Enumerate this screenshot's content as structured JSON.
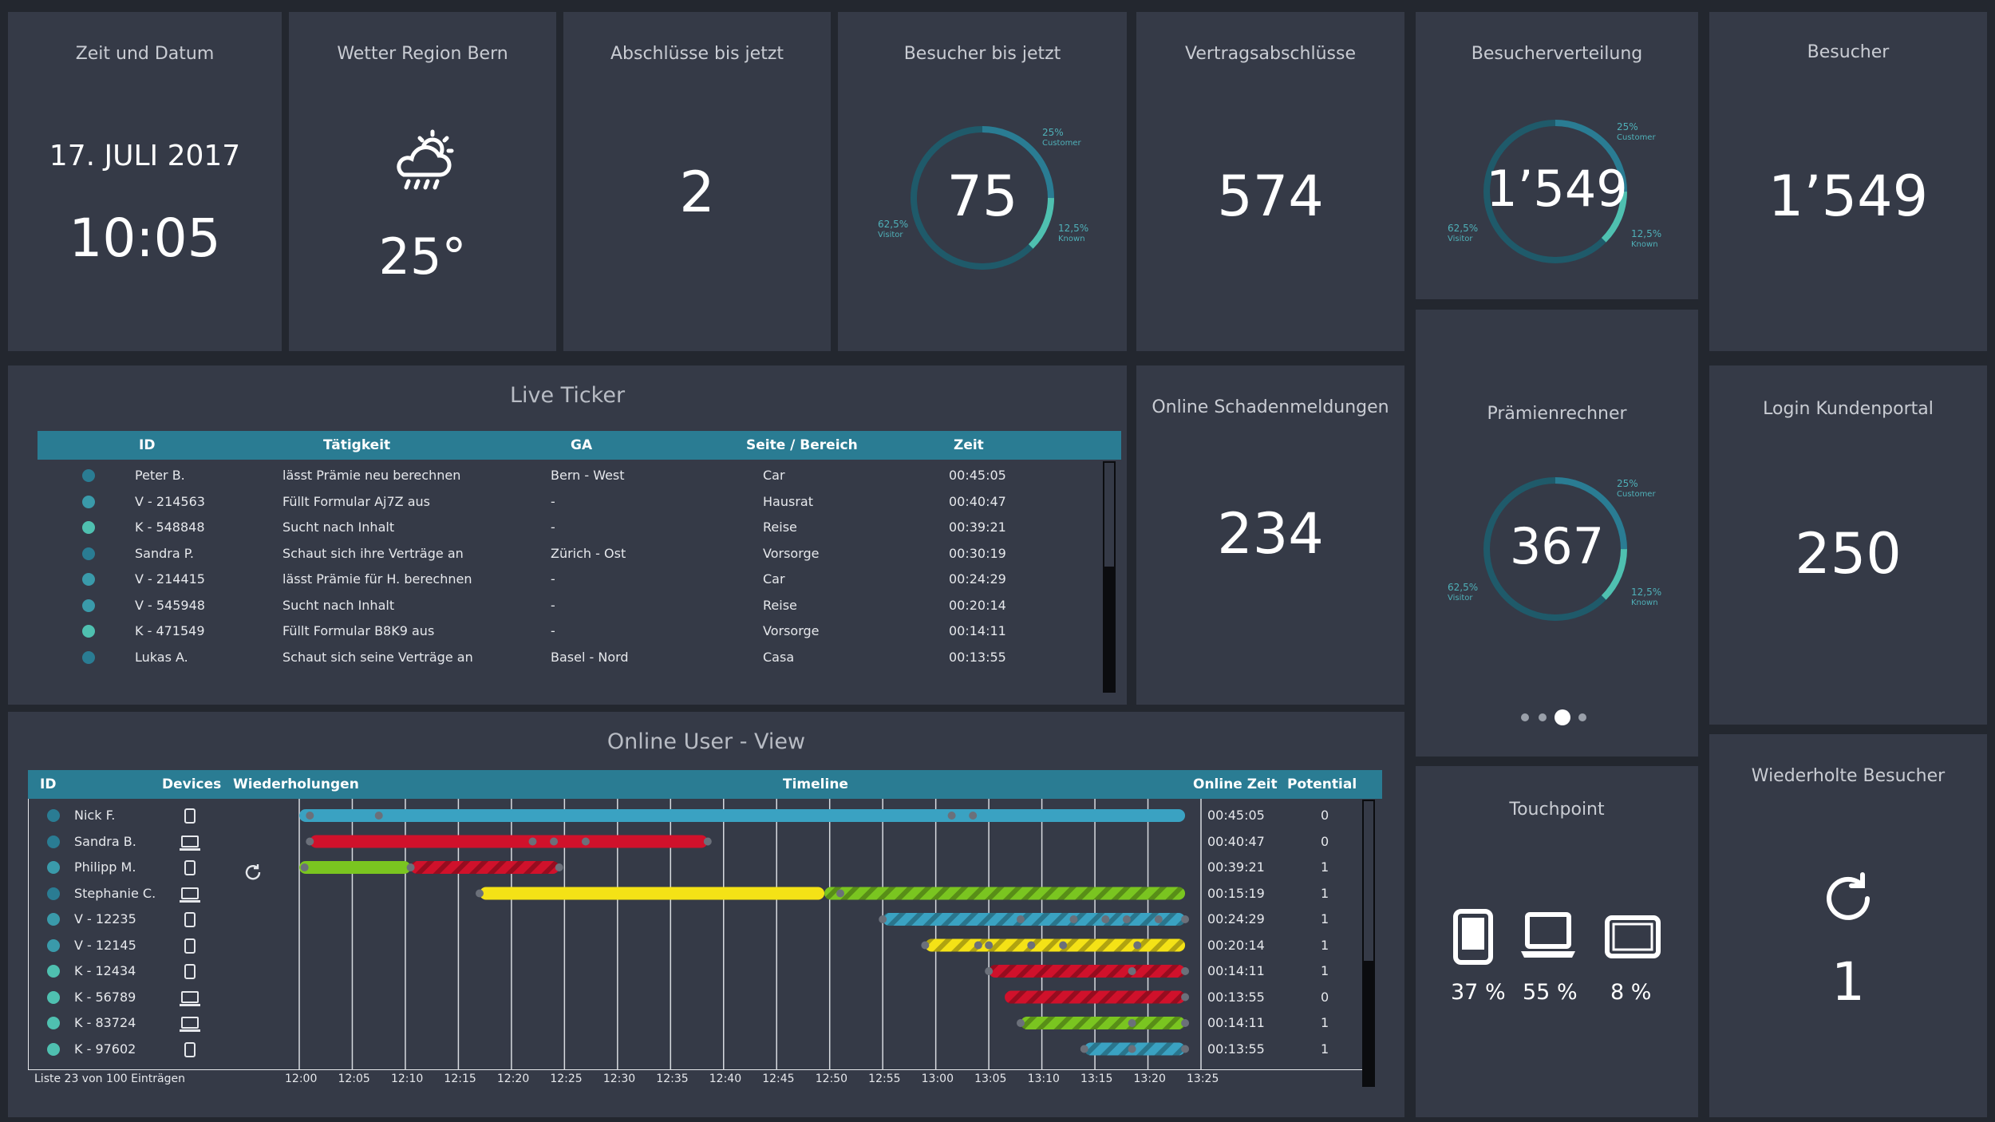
{
  "tiles": {
    "datetime": {
      "title": "Zeit und Datum",
      "date": "17. JULI 2017",
      "time": "10:05"
    },
    "weather": {
      "title": "Wetter Region Bern",
      "icon": "cloud-sun-rain-icon",
      "temp": "25°"
    },
    "closings_now": {
      "title": "Abschlüsse bis jetzt",
      "value": "2"
    },
    "visitors_now": {
      "title": "Besucher bis jetzt",
      "value": "75",
      "seg_customer": "25%",
      "seg_customer_lbl": "Customer",
      "seg_known": "12,5%",
      "seg_known_lbl": "Known",
      "seg_visitor": "62,5%",
      "seg_visitor_lbl": "Visitor"
    },
    "contracts": {
      "title": "Vertragsabschlüsse",
      "value": "574"
    },
    "distribution": {
      "title": "Besucherverteilung",
      "value": "1’549",
      "seg_customer": "25%",
      "seg_customer_lbl": "Customer",
      "seg_known": "12,5%",
      "seg_known_lbl": "Known",
      "seg_visitor": "62,5%",
      "seg_visitor_lbl": "Visitor"
    },
    "visitors": {
      "title": "Besucher",
      "value": "1’549"
    },
    "claims": {
      "title": "Online Schadenmeldungen",
      "value": "234"
    },
    "premium": {
      "title": "Prämienrechner",
      "value": "367",
      "seg_customer": "25%",
      "seg_customer_lbl": "Customer",
      "seg_known": "12,5%",
      "seg_known_lbl": "Known",
      "seg_visitor": "62,5%",
      "seg_visitor_lbl": "Visitor"
    },
    "login": {
      "title": "Login Kundenportal",
      "value": "250"
    },
    "touchpoint": {
      "title": "Touchpoint",
      "mobile": "37 %",
      "laptop": "55 %",
      "tablet": "8 %"
    },
    "repeat": {
      "title": "Wiederholte Besucher",
      "value": "1"
    }
  },
  "ticker": {
    "title": "Live Ticker",
    "headers": {
      "id": "ID",
      "activity": "Tätigkeit",
      "ga": "GA",
      "page": "Seite / Bereich",
      "time": "Zeit"
    },
    "rows": [
      {
        "id": "Peter B.",
        "activity": "lässt Prämie neu berechnen",
        "ga": "Bern - West",
        "page": "Car",
        "time": "00:45:05",
        "color": "#2a7c93"
      },
      {
        "id": "V - 214563",
        "activity": "Füllt Formular Aj7Z aus",
        "ga": "-",
        "page": "Hausrat",
        "time": "00:40:47",
        "color": "#3a9aaa"
      },
      {
        "id": "K - 548848",
        "activity": "Sucht nach Inhalt",
        "ga": "-",
        "page": "Reise",
        "time": "00:39:21",
        "color": "#4fc0b0"
      },
      {
        "id": "Sandra P.",
        "activity": "Schaut sich ihre Verträge an",
        "ga": "Zürich - Ost",
        "page": "Vorsorge",
        "time": "00:30:19",
        "color": "#2a7c93"
      },
      {
        "id": "V - 214415",
        "activity": "lässt Prämie für H. berechnen",
        "ga": "-",
        "page": "Car",
        "time": "00:24:29",
        "color": "#3a9aaa"
      },
      {
        "id": "V - 545948",
        "activity": "Sucht nach Inhalt",
        "ga": "-",
        "page": "Reise",
        "time": "00:20:14",
        "color": "#3a9aaa"
      },
      {
        "id": "K - 471549",
        "activity": "Füllt Formular B8K9 aus",
        "ga": "-",
        "page": "Vorsorge",
        "time": "00:14:11",
        "color": "#4fc0b0"
      },
      {
        "id": "Lukas A.",
        "activity": "Schaut sich seine Verträge an",
        "ga": "Basel - Nord",
        "page": "Casa",
        "time": "00:13:55",
        "color": "#2a7c93"
      }
    ]
  },
  "userview": {
    "title": "Online User - View",
    "headers": {
      "id": "ID",
      "devices": "Devices",
      "repeat": "Wiederholungen",
      "timeline": "Timeline",
      "online": "Online Zeit",
      "potential": "Potential"
    },
    "ticks": [
      "12:00",
      "12:05",
      "12:10",
      "12:15",
      "12:20",
      "12:25",
      "12:30",
      "12:35",
      "12:40",
      "12:45",
      "12:50",
      "12:55",
      "13:00",
      "13:05",
      "13:10",
      "13:15",
      "13:20",
      "13:25"
    ],
    "footer": "Liste 23 von 100 Einträgen",
    "rows": [
      {
        "id": "Nick F.",
        "device": "mobile",
        "repeat": false,
        "online": "00:45:05",
        "potential": "0",
        "color": "#2a7c93",
        "segments": [
          {
            "start": 0,
            "end": 83.5,
            "color": "#3aa2c2",
            "striped": false
          }
        ],
        "dots": [
          1,
          7.5,
          61.5,
          63.5
        ]
      },
      {
        "id": "Sandra B.",
        "device": "laptop",
        "repeat": false,
        "online": "00:40:47",
        "potential": "0",
        "color": "#2a7c93",
        "segments": [
          {
            "start": 1,
            "end": 38.5,
            "color": "#d0112b",
            "striped": false
          }
        ],
        "dots": [
          1,
          22,
          24,
          27,
          38.5
        ]
      },
      {
        "id": "Philipp M.",
        "device": "mobile",
        "repeat": true,
        "online": "00:39:21",
        "potential": "1",
        "color": "#3a9aaa",
        "segments": [
          {
            "start": 0,
            "end": 10.5,
            "color": "#7ac520",
            "striped": false
          },
          {
            "start": 10.5,
            "end": 24.5,
            "color": "#d0112b",
            "striped": true
          }
        ],
        "dots": [
          0.5,
          10.5,
          24.5
        ]
      },
      {
        "id": "Stephanie C.",
        "device": "laptop",
        "repeat": false,
        "online": "00:15:19",
        "potential": "1",
        "color": "#2a7c93",
        "segments": [
          {
            "start": 17,
            "end": 49.5,
            "color": "#f4e216",
            "striped": false
          },
          {
            "start": 49.5,
            "end": 83.5,
            "color": "#7ac520",
            "striped": true
          }
        ],
        "dots": [
          17,
          51
        ]
      },
      {
        "id": "V - 12235",
        "device": "mobile",
        "repeat": false,
        "online": "00:24:29",
        "potential": "1",
        "color": "#3a9aaa",
        "segments": [
          {
            "start": 55,
            "end": 83.5,
            "color": "#3aa2c2",
            "striped": true
          }
        ],
        "dots": [
          55,
          68,
          73,
          76,
          78,
          81,
          83.5
        ]
      },
      {
        "id": "V - 12145",
        "device": "mobile",
        "repeat": false,
        "online": "00:20:14",
        "potential": "1",
        "color": "#3a9aaa",
        "segments": [
          {
            "start": 59,
            "end": 83.5,
            "color": "#f4e216",
            "striped": true
          }
        ],
        "dots": [
          59,
          64,
          65,
          69,
          72,
          79
        ]
      },
      {
        "id": "K - 12434",
        "device": "mobile",
        "repeat": false,
        "online": "00:14:11",
        "potential": "1",
        "color": "#4fc0b0",
        "segments": [
          {
            "start": 65,
            "end": 83.5,
            "color": "#d0112b",
            "striped": true
          }
        ],
        "dots": [
          65,
          78.5,
          83.5
        ]
      },
      {
        "id": "K - 56789",
        "device": "laptop",
        "repeat": false,
        "online": "00:13:55",
        "potential": "0",
        "color": "#4fc0b0",
        "segments": [
          {
            "start": 66.5,
            "end": 83.5,
            "color": "#d0112b",
            "striped": true
          }
        ],
        "dots": [
          83.5
        ]
      },
      {
        "id": "K - 83724",
        "device": "laptop",
        "repeat": false,
        "online": "00:14:11",
        "potential": "1",
        "color": "#4fc0b0",
        "segments": [
          {
            "start": 68,
            "end": 83.5,
            "color": "#7ac520",
            "striped": true
          }
        ],
        "dots": [
          68,
          78.5,
          83.5
        ]
      },
      {
        "id": "K - 97602",
        "device": "mobile",
        "repeat": false,
        "online": "00:13:55",
        "potential": "1",
        "color": "#4fc0b0",
        "segments": [
          {
            "start": 74,
            "end": 83.5,
            "color": "#3aa2c2",
            "striped": true
          }
        ],
        "dots": [
          74,
          78.5,
          83.5
        ]
      }
    ]
  },
  "colors": {
    "tile": "#353a47",
    "accent": "#2a7c93",
    "teal": "#4fc0b0",
    "ring": "#1f5a6a"
  }
}
